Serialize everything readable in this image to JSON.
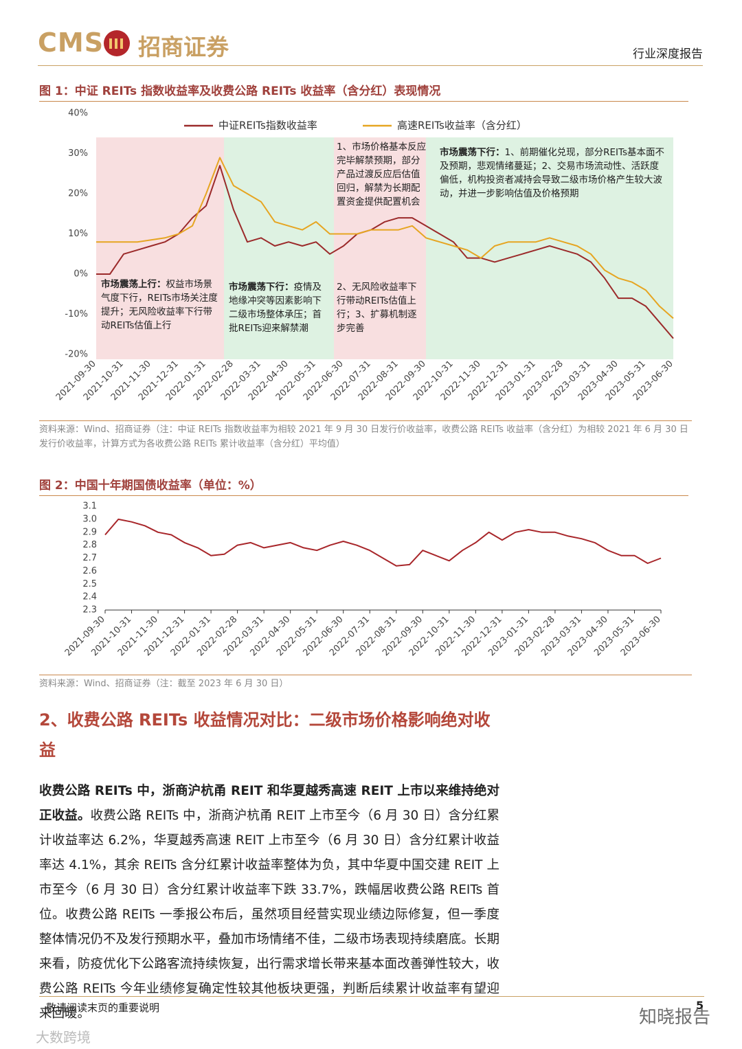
{
  "header": {
    "logo_text": "CMS",
    "company": "招商证券",
    "report_type": "行业深度报告"
  },
  "chart_data": [
    {
      "type": "line",
      "title": "图 1：中证 REITs 指数收益率及收费公路 REITs 收益率（含分红）表现情况",
      "categories": [
        "2021-09-30",
        null,
        "2021-10-31",
        null,
        "2021-11-30",
        null,
        "2021-12-31",
        null,
        "2022-01-31",
        null,
        "2022-02-28",
        null,
        "2022-03-31",
        null,
        "2022-04-30",
        null,
        "2022-05-31",
        null,
        "2022-06-30",
        null,
        "2022-07-31",
        null,
        "2022-08-31",
        null,
        "2022-09-30",
        null,
        "2022-10-31",
        null,
        "2022-11-30",
        null,
        "2022-12-31",
        null,
        "2023-01-31",
        null,
        "2023-02-28",
        null,
        "2023-03-31",
        null,
        "2023-04-30",
        null,
        "2023-05-31",
        null,
        "2023-06-30"
      ],
      "series": [
        {
          "name": "中证REITs指数收益率",
          "color": "#9b2a2a",
          "values": [
            0,
            0,
            5,
            6,
            7,
            8,
            10,
            14,
            17,
            27,
            16,
            8,
            9,
            7,
            8,
            7,
            8,
            5,
            7,
            10,
            11,
            13,
            14,
            14,
            12,
            10,
            8,
            4,
            4,
            3,
            4,
            5,
            6,
            7,
            6,
            5,
            3,
            -1,
            -6,
            -6,
            -8,
            -12,
            -16
          ]
        },
        {
          "name": "高速REITs收益率（含分红）",
          "color": "#e6a521",
          "values": [
            8,
            8,
            8,
            8,
            8.5,
            9,
            10,
            12,
            20,
            29,
            22,
            20,
            18,
            13,
            12,
            11,
            13,
            10,
            10,
            10,
            11,
            11,
            11,
            12,
            9,
            8,
            7,
            6,
            4,
            7,
            8,
            8,
            8,
            9,
            8,
            7,
            5,
            1,
            -1,
            -2,
            -4,
            -8,
            -11
          ]
        }
      ],
      "ylim": [
        -20,
        40
      ],
      "yticks": [
        {
          "value": -20,
          "label": "-20%"
        },
        {
          "value": -10,
          "label": "-10%"
        },
        {
          "value": 0,
          "label": "0%"
        },
        {
          "value": 10,
          "label": "10%"
        },
        {
          "value": 20,
          "label": "20%"
        },
        {
          "value": 30,
          "label": "30%"
        },
        {
          "value": 40,
          "label": "40%"
        }
      ],
      "grid": false,
      "annotations": [
        {
          "label": "市场震荡上行：",
          "text": "权益市场景气度下行，REITs市场关注度提升；无风险收益率下行带动REITs估值上行"
        },
        {
          "label": "市场震荡下行：",
          "text": "疫情及地缘冲突等因素影响下二级市场整体承压；首批REITs迎来解禁潮"
        },
        {
          "text": "1、市场价格基本反应完毕解禁预期，部分产品过渡反应后估值回归，解禁为长期配置资金提供配置机会"
        },
        {
          "text": "2、无风险收益率下行带动REITs估值上行；3、扩募机制逐步完善"
        },
        {
          "label": "市场震荡下行：",
          "text": "1、前期催化兑现，部分REITs基本面不及预期，悲观情绪蔓延；2、交易市场流动性、活跃度偏低，机构投资者减持会导致二级市场价格产生较大波动，并进一步影响估值及价格预期"
        }
      ],
      "source": "资料来源：Wind、招商证券（注：中证 REITs 指数收益率为相较 2021 年 9 月 30 日发行价收益率，收费公路 REITs 收益率（含分红）为相较 2021 年 6 月 30 日发行价收益率，计算方式为各收费公路 REITs 累计收益率（含分红）平均值）"
    },
    {
      "type": "line",
      "title": "图 2：中国十年期国债收益率（单位：%）",
      "categories": [
        "2021-09-30",
        null,
        "2021-10-31",
        null,
        "2021-11-30",
        null,
        "2021-12-31",
        null,
        "2022-01-31",
        null,
        "2022-02-28",
        null,
        "2022-03-31",
        null,
        "2022-04-30",
        null,
        "2022-05-31",
        null,
        "2022-06-30",
        null,
        "2022-07-31",
        null,
        "2022-08-31",
        null,
        "2022-09-30",
        null,
        "2022-10-31",
        null,
        "2022-11-30",
        null,
        "2022-12-31",
        null,
        "2023-01-31",
        null,
        "2023-02-28",
        null,
        "2023-03-31",
        null,
        "2023-04-30",
        null,
        "2023-05-31",
        null,
        "2023-06-30"
      ],
      "color": "#a8262a",
      "values": [
        2.88,
        3.0,
        2.98,
        2.95,
        2.9,
        2.88,
        2.82,
        2.78,
        2.72,
        2.73,
        2.8,
        2.82,
        2.78,
        2.8,
        2.82,
        2.78,
        2.76,
        2.8,
        2.83,
        2.8,
        2.76,
        2.7,
        2.64,
        2.65,
        2.76,
        2.72,
        2.68,
        2.76,
        2.82,
        2.9,
        2.84,
        2.9,
        2.92,
        2.9,
        2.9,
        2.87,
        2.85,
        2.82,
        2.76,
        2.72,
        2.72,
        2.66,
        2.7
      ],
      "ylim": [
        2.3,
        3.1
      ],
      "yticks": [
        2.3,
        2.4,
        2.5,
        2.6,
        2.7,
        2.8,
        2.9,
        {
          "value": 3,
          "label": "3.0"
        },
        3.1
      ],
      "grid": false,
      "source": "资料来源：Wind、招商证券（注：截至 2023 年 6 月 30 日）"
    }
  ],
  "section": {
    "heading": "2、收费公路 REITs 收益情况对比：二级市场价格影响绝对收益",
    "lead": "收费公路 REITs 中，浙商沪杭甬 REIT 和华夏越秀高速 REIT 上市以来维持绝对正收益。",
    "text": "收费公路 REITs 中，浙商沪杭甬 REIT 上市至今（6 月 30 日）含分红累计收益率达 6.2%，华夏越秀高速 REIT 上市至今（6 月 30 日）含分红累计收益率达 4.1%，其余 REITs 含分红累计收益率整体为负，其中华夏中国交建 REIT 上市至今（6 月 30 日）含分红累计收益率下跌 33.7%，跌幅居收费公路 REITs 首位。收费公路 REITs 一季报公布后，虽然项目经营实现业绩边际修复，但一季度整体情况仍不及发行预期水平，叠加市场情绪不佳，二级市场表现持续磨底。长期来看，防疫优化下公路客流持续恢复，出行需求增长带来基本面改善弹性较大，收费公路 REITs 今年业绩修复确定性较其他板块更强，判断后续累计收益率有望迎来回暖。"
  },
  "footer": {
    "note": "敬请阅读末页的重要说明",
    "page": "5"
  },
  "watermarks": [
    "知晓报告",
    "大数跨境"
  ]
}
